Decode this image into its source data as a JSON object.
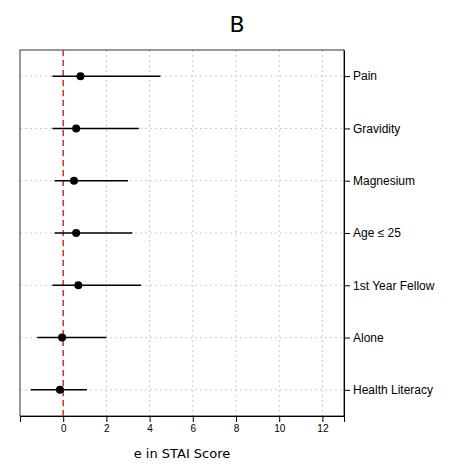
{
  "chart_data": {
    "type": "forest",
    "title": "B",
    "categories": [
      "Pain",
      "Gravidity",
      "Magnesium",
      "Age ≤ 25",
      "1st Year Fellow",
      "Alone",
      "Health Literacy"
    ],
    "values": [
      0.8,
      0.6,
      0.5,
      0.6,
      0.7,
      -0.05,
      -0.15
    ],
    "ci_lower": [
      -0.5,
      -0.5,
      -0.4,
      -0.4,
      -0.5,
      -1.2,
      -1.5
    ],
    "ci_upper": [
      4.5,
      3.5,
      3.0,
      3.2,
      3.6,
      2.0,
      1.1
    ],
    "x_label": "e in STAI Score",
    "xlim": [
      -2.0,
      13.0
    ],
    "xticks": [
      0,
      2,
      4,
      6,
      8,
      10,
      12
    ],
    "reference_lines": [
      {
        "value": 0,
        "color": "#cc3333",
        "line_style": "dashed"
      }
    ],
    "color": "#000000",
    "grid": true
  }
}
